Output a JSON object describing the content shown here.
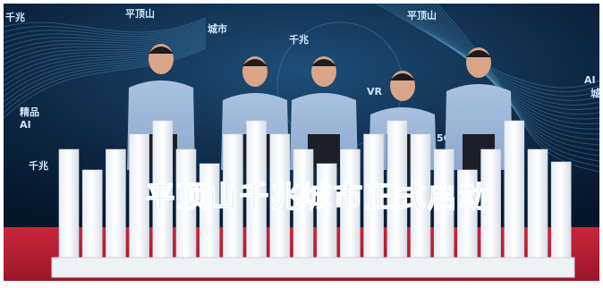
{
  "image": {
    "banner_text": "平顶山千兆城市正式启动",
    "background_labels": [
      "千兆",
      "平顶山",
      "城市",
      "平顶山",
      "千兆",
      "VR",
      "5G",
      "精品",
      "AI",
      "千兆",
      "AI",
      "城"
    ]
  }
}
